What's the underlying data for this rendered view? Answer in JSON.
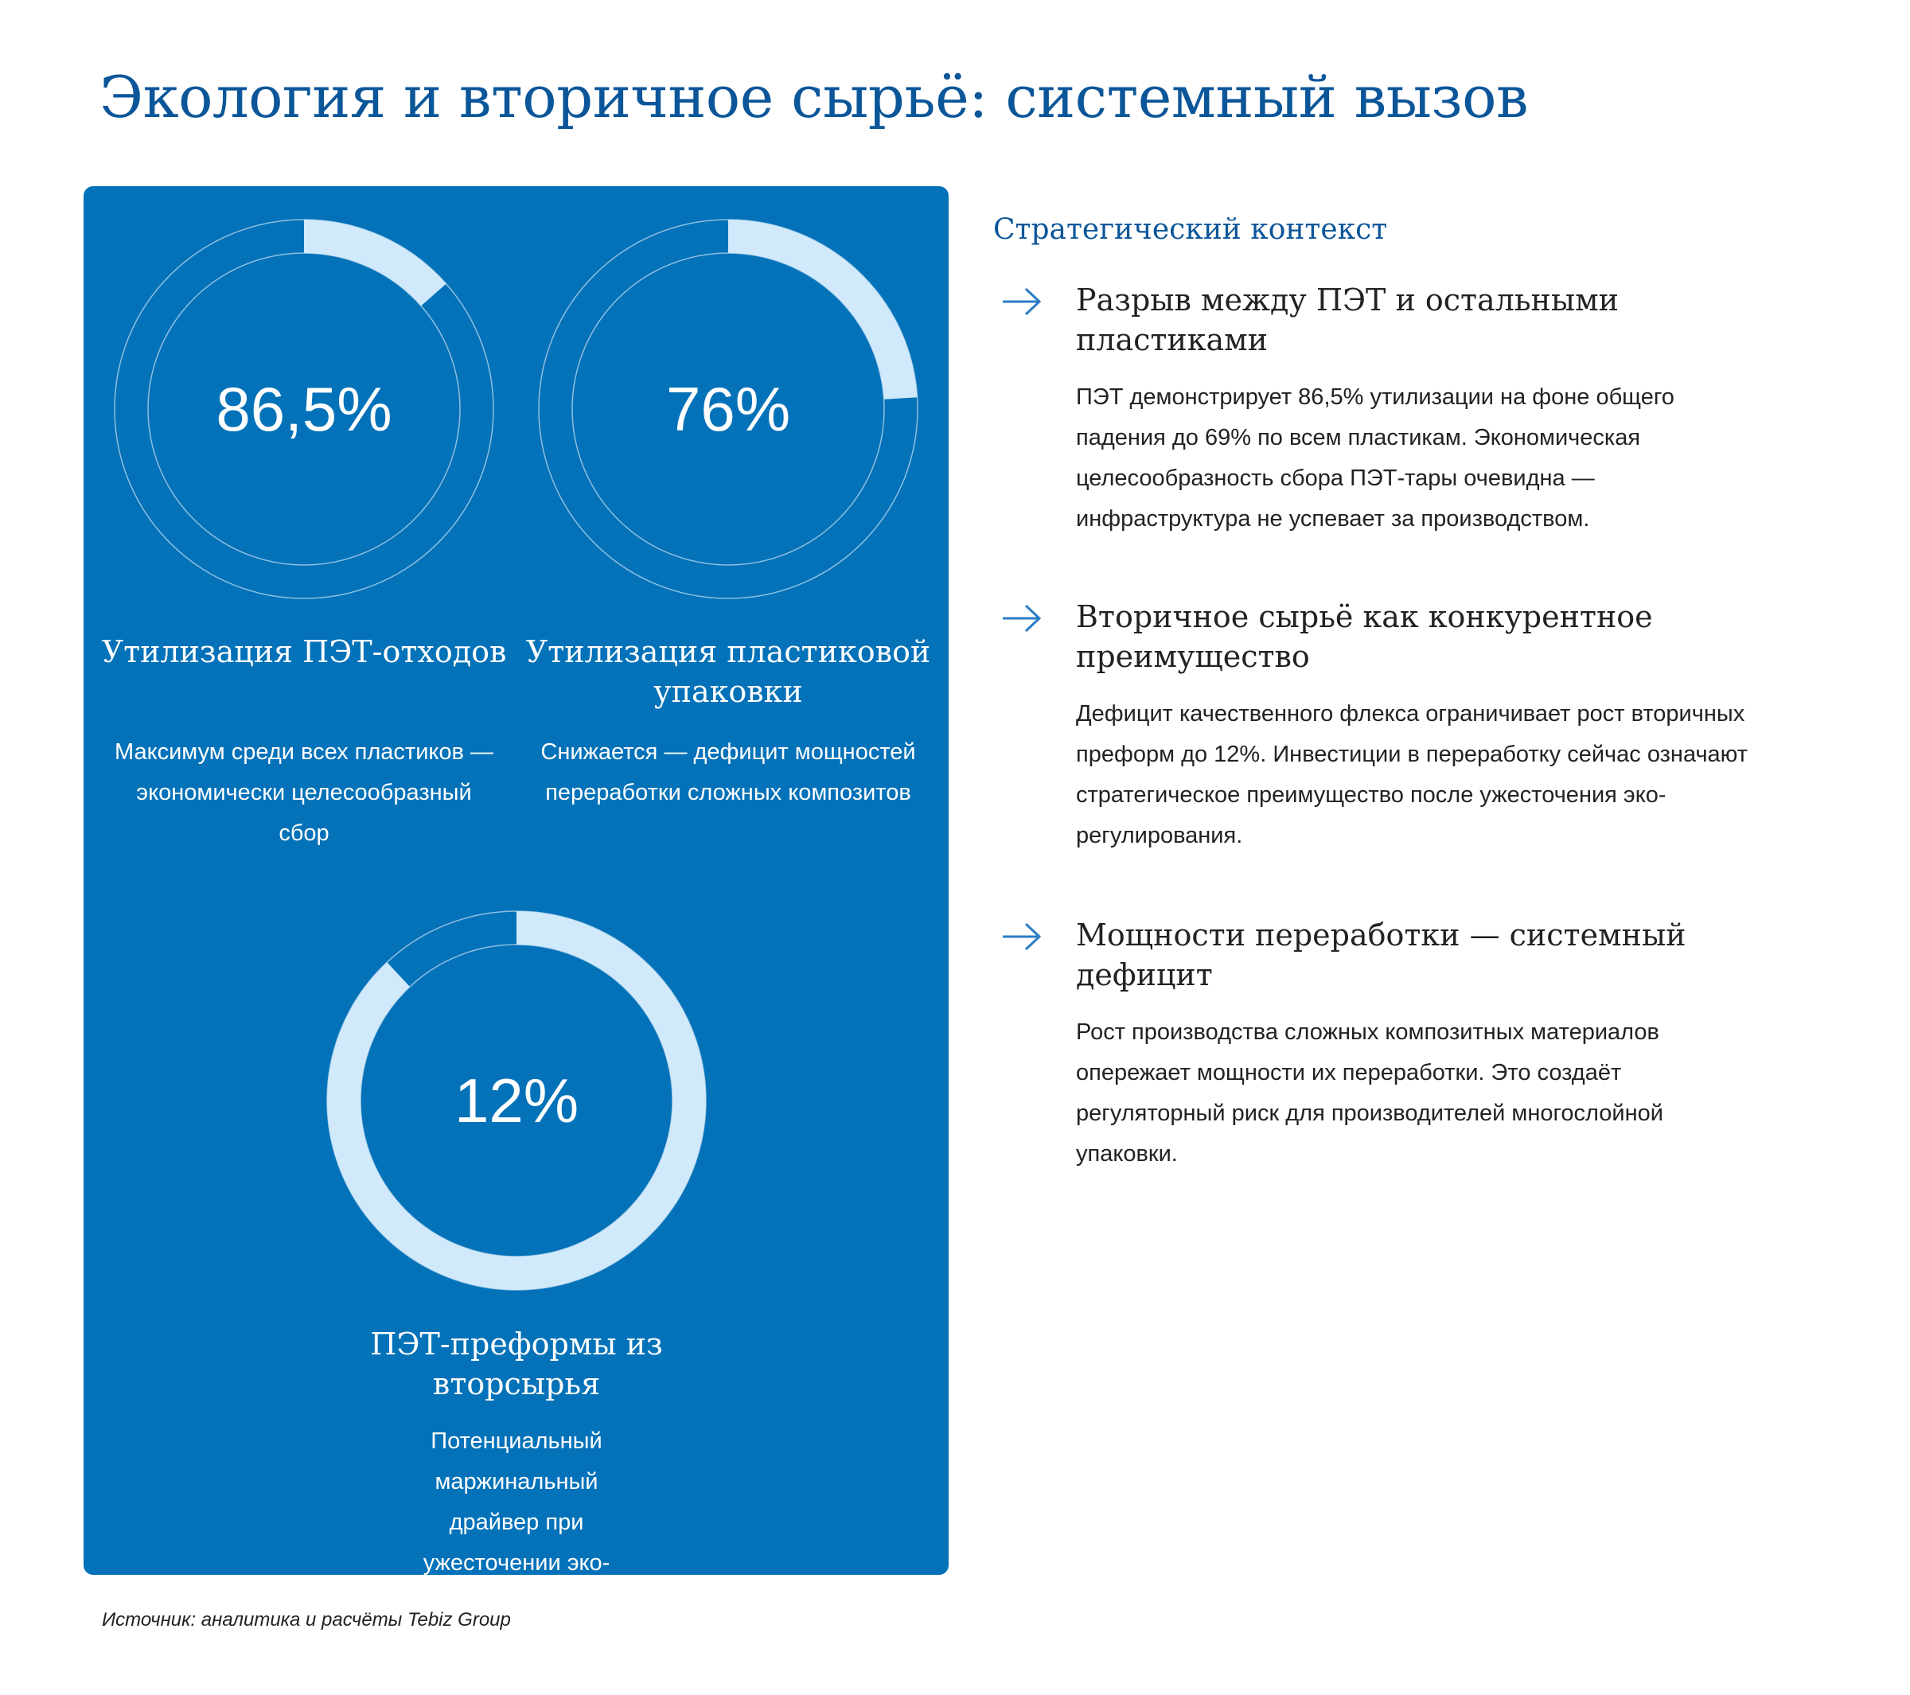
{
  "page": {
    "title": "Экология и вторичное сырьё: системный вызов"
  },
  "metrics": [
    {
      "value_label": "86,5%",
      "fill_fraction": 0.135,
      "title": "Утилизация ПЭТ-отходов",
      "description": "Максимум среди всех пластиков — экономически целесообразный сбор"
    },
    {
      "value_label": "76%",
      "fill_fraction": 0.24,
      "title": "Утилизация пластиковой упаковки",
      "description": "Снижается — дефицит мощностей переработки сложных композитов"
    },
    {
      "value_label": "12%",
      "fill_fraction": 0.88,
      "title": "ПЭТ-преформы из вторсырья",
      "description": "Потенциальный маржинальный драйвер при ужесточении эко-норм"
    }
  ],
  "context": {
    "heading": "Стратегический контекст",
    "points": [
      {
        "icon": "arrow-right-icon",
        "title": "Разрыв между ПЭТ и остальными пластиками",
        "text": "ПЭТ демонстрирует 86,5% утилизации на фоне общего падения до 69% по всем пластикам. Экономическая целесообразность сбора ПЭТ-тары очевидна — инфраструктура не успевает за производством."
      },
      {
        "icon": "arrow-right-icon",
        "title": "Вторичное сырьё как конкурентное преимущество",
        "text": "Дефицит качественного флекса ограничивает рост вторичных преформ до 12%. Инвестиции в переработку сейчас означают стратегическое преимущество после ужесточения эко-регулирования."
      },
      {
        "icon": "arrow-right-icon",
        "title": "Мощности переработки — системный дефицит",
        "text": "Рост производства сложных композитных материалов опережает мощности их переработки. Это создаёт регуляторный риск для производителей многослойной упаковки."
      }
    ]
  },
  "source": "Источник: аналитика и расчёты Tebiz Group",
  "colors": {
    "accent": "#0b5699",
    "panel": "#0472b9",
    "ring_fill": "#d0e9fb",
    "arrow": "#2b7cc4"
  }
}
